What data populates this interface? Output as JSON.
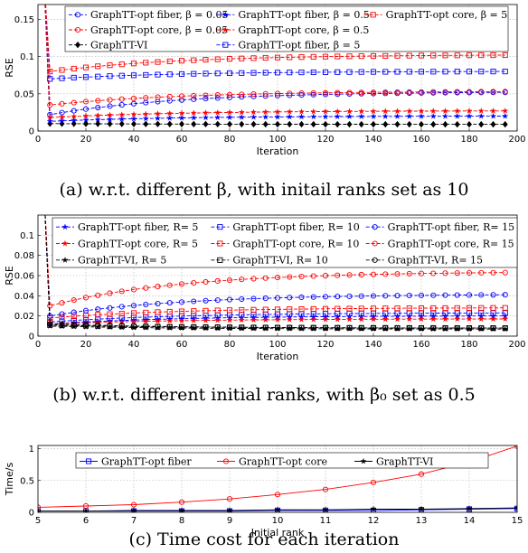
{
  "chart_data": [
    {
      "type": "line",
      "caption": "(a) w.r.t. different β, with initail ranks set as 10",
      "xlabel": "Iteration",
      "ylabel": "RSE",
      "xlim": [
        0,
        200
      ],
      "ylim": [
        0,
        0.17
      ],
      "xticks": [
        "0",
        "20",
        "40",
        "60",
        "80",
        "100",
        "120",
        "140",
        "160",
        "180",
        "200"
      ],
      "yticks": [
        "0",
        "0.05",
        "0.1",
        "0.15"
      ],
      "grid": true,
      "legend_position": "top",
      "series": [
        {
          "name": "GraphTT-opt fiber, β = 0.05",
          "color": "#0000ff",
          "marker": "circle",
          "x": [
            5,
            100,
            195
          ],
          "y": [
            0.022,
            0.046,
            0.052
          ]
        },
        {
          "name": "GraphTT-opt core, β = 0.05",
          "color": "#ff0000",
          "marker": "circle",
          "x": [
            5,
            100,
            195
          ],
          "y": [
            0.035,
            0.05,
            0.053
          ]
        },
        {
          "name": "GraphTT-VI",
          "color": "#000000",
          "marker": "diamond",
          "x": [
            5,
            100,
            195
          ],
          "y": [
            0.01,
            0.009,
            0.009
          ]
        },
        {
          "name": "GraphTT-opt fiber, β = 0.5",
          "color": "#0000ff",
          "marker": "star",
          "x": [
            5,
            100,
            195
          ],
          "y": [
            0.013,
            0.018,
            0.02
          ]
        },
        {
          "name": "GraphTT-opt core, β = 0.5",
          "color": "#ff0000",
          "marker": "star",
          "x": [
            5,
            100,
            195
          ],
          "y": [
            0.018,
            0.025,
            0.027
          ]
        },
        {
          "name": "GraphTT-opt fiber, β = 5",
          "color": "#0000ff",
          "marker": "square",
          "x": [
            5,
            100,
            195
          ],
          "y": [
            0.07,
            0.078,
            0.08
          ]
        },
        {
          "name": "GraphTT-opt core, β = 5",
          "color": "#ff0000",
          "marker": "square",
          "x": [
            5,
            100,
            195
          ],
          "y": [
            0.08,
            0.098,
            0.102
          ]
        }
      ]
    },
    {
      "type": "line",
      "caption": "(b) w.r.t. different initial ranks, with β₀ set as 0.5",
      "xlabel": "Iteration",
      "ylabel": "RSE",
      "xlim": [
        0,
        200
      ],
      "ylim": [
        0,
        0.12
      ],
      "xticks": [
        "0",
        "20",
        "40",
        "60",
        "80",
        "100",
        "120",
        "140",
        "160",
        "180",
        "200"
      ],
      "yticks": [
        "0",
        "0.02",
        "0.04",
        "0.06",
        "0.08",
        "0.1"
      ],
      "grid": true,
      "legend_position": "top",
      "series": [
        {
          "name": "GraphTT-opt fiber, R= 5",
          "color": "#0000ff",
          "marker": "star",
          "x": [
            5,
            100,
            195
          ],
          "y": [
            0.012,
            0.018,
            0.02
          ]
        },
        {
          "name": "GraphTT-opt core, R= 5",
          "color": "#ff0000",
          "marker": "star",
          "x": [
            5,
            100,
            195
          ],
          "y": [
            0.012,
            0.016,
            0.017
          ]
        },
        {
          "name": "GraphTT-VI, R= 5",
          "color": "#000000",
          "marker": "star",
          "x": [
            5,
            100,
            195
          ],
          "y": [
            0.01,
            0.008,
            0.007
          ]
        },
        {
          "name": "GraphTT-opt fiber, R= 10",
          "color": "#0000ff",
          "marker": "square",
          "x": [
            5,
            100,
            195
          ],
          "y": [
            0.014,
            0.02,
            0.023
          ]
        },
        {
          "name": "GraphTT-opt core, R= 10",
          "color": "#ff0000",
          "marker": "square",
          "x": [
            5,
            100,
            195
          ],
          "y": [
            0.018,
            0.025,
            0.028
          ]
        },
        {
          "name": "GraphTT-VI, R= 10",
          "color": "#000000",
          "marker": "square",
          "x": [
            5,
            100,
            195
          ],
          "y": [
            0.011,
            0.009,
            0.008
          ]
        },
        {
          "name": "GraphTT-opt fiber, R= 15",
          "color": "#0000ff",
          "marker": "circle",
          "x": [
            5,
            100,
            195
          ],
          "y": [
            0.02,
            0.035,
            0.041
          ]
        },
        {
          "name": "GraphTT-opt core, R= 15",
          "color": "#ff0000",
          "marker": "circle",
          "x": [
            5,
            100,
            195
          ],
          "y": [
            0.03,
            0.056,
            0.063
          ]
        },
        {
          "name": "GraphTT-VI, R= 15",
          "color": "#000000",
          "marker": "circle",
          "x": [
            5,
            100,
            195
          ],
          "y": [
            0.012,
            0.009,
            0.008
          ]
        }
      ]
    },
    {
      "type": "line",
      "caption": "(c) Time cost for each iteration",
      "xlabel": "Initial rank",
      "ylabel": "Time/s",
      "xlim": [
        5,
        15
      ],
      "ylim": [
        0,
        1.05
      ],
      "xticks": [
        "5",
        "6",
        "7",
        "8",
        "9",
        "10",
        "11",
        "12",
        "13",
        "14",
        "15"
      ],
      "yticks": [
        "0",
        "0.5",
        "1"
      ],
      "grid": true,
      "legend_position": "top",
      "categories": [
        5,
        6,
        7,
        8,
        9,
        10,
        11,
        12,
        13,
        14,
        15
      ],
      "series": [
        {
          "name": "GraphTT-opt fiber",
          "color": "#0000ff",
          "marker": "square",
          "values": [
            0.02,
            0.02,
            0.02,
            0.02,
            0.02,
            0.03,
            0.03,
            0.03,
            0.04,
            0.05,
            0.06
          ]
        },
        {
          "name": "GraphTT-opt core",
          "color": "#ff0000",
          "marker": "circle",
          "values": [
            0.08,
            0.1,
            0.12,
            0.16,
            0.21,
            0.28,
            0.36,
            0.47,
            0.6,
            0.79,
            1.04
          ]
        },
        {
          "name": "GraphTT-VI",
          "color": "#000000",
          "marker": "star",
          "values": [
            0.02,
            0.02,
            0.03,
            0.03,
            0.03,
            0.04,
            0.04,
            0.05,
            0.05,
            0.06,
            0.07
          ]
        }
      ]
    }
  ]
}
